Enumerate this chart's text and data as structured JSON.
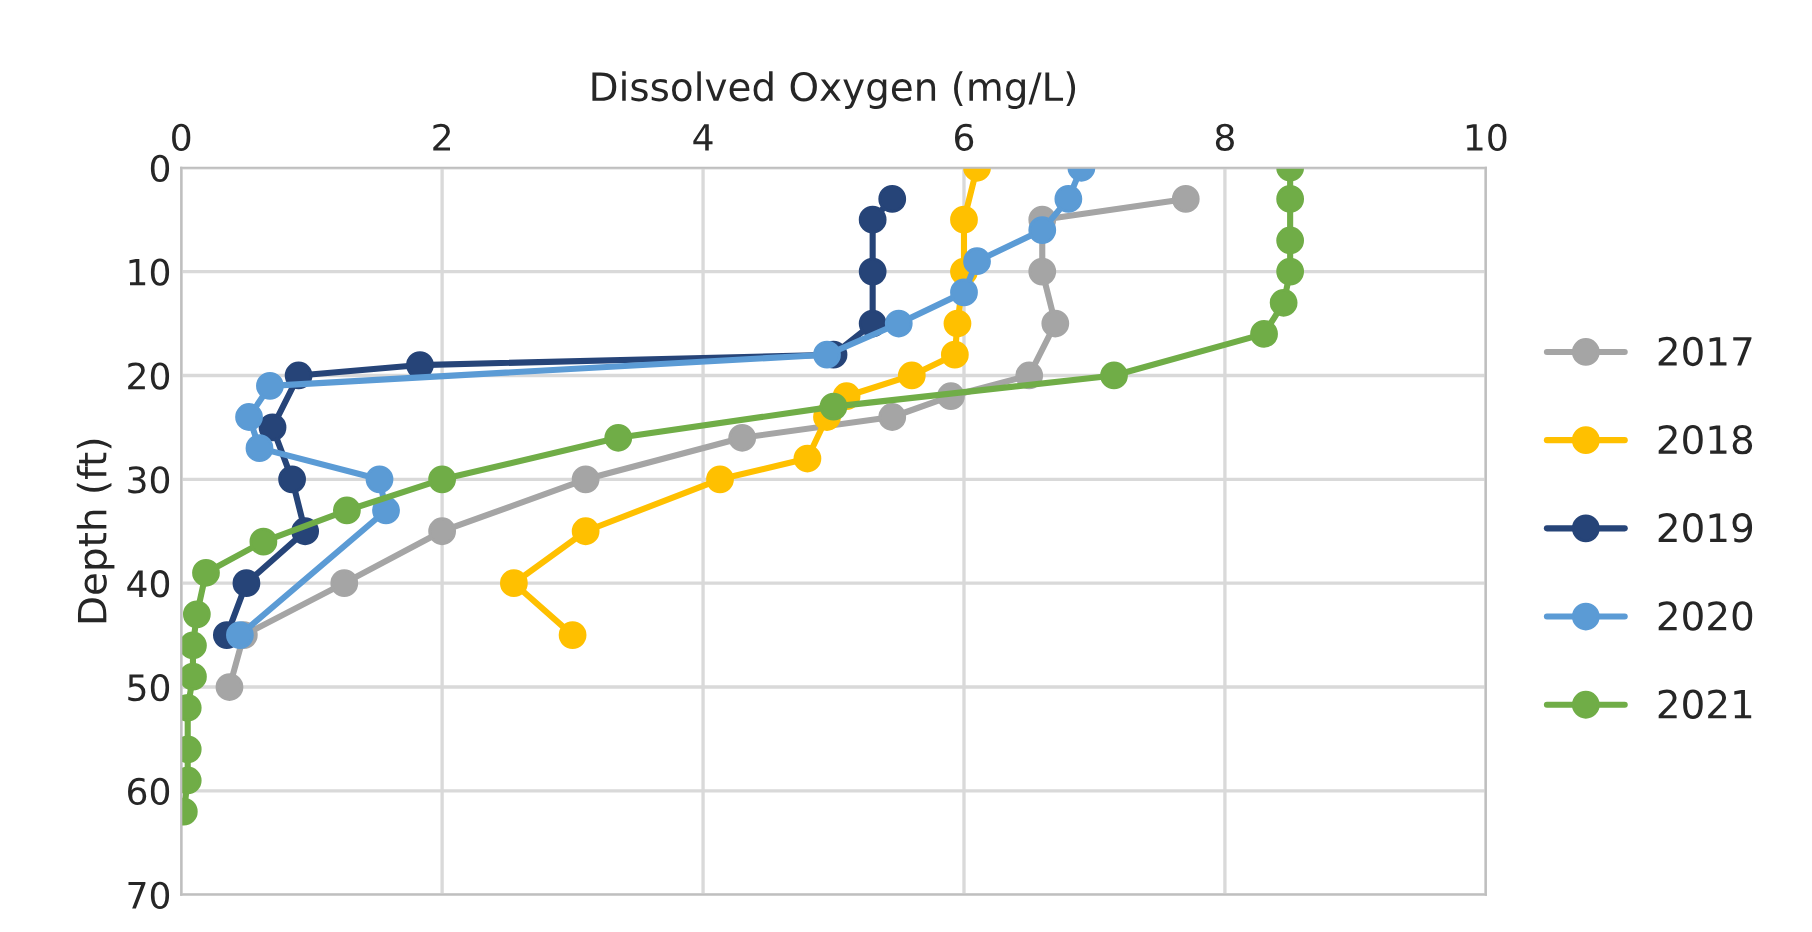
{
  "chart_data": {
    "type": "line",
    "xlabel": "Dissolved Oxygen (mg/L)",
    "ylabel": "Depth (ft)",
    "xlim": [
      0,
      10
    ],
    "xticks": [
      0,
      2,
      4,
      6,
      8,
      10
    ],
    "ylim": [
      70,
      0
    ],
    "yticks": [
      0,
      10,
      20,
      30,
      40,
      50,
      60,
      70
    ],
    "grid": true,
    "legend": "right",
    "marker": "circle",
    "line_style": "solid",
    "series": [
      {
        "name": "2017",
        "color": "#a5a5a5",
        "x": [
          7.7,
          6.6,
          6.6,
          6.7,
          6.5,
          5.9,
          5.45,
          4.3,
          3.1,
          2.0,
          1.25,
          0.48,
          0.37
        ],
        "values": [
          3,
          5,
          10,
          15,
          20,
          22,
          24,
          26,
          30,
          35,
          40,
          45,
          50
        ]
      },
      {
        "name": "2018",
        "color": "#ffc000",
        "x": [
          6.1,
          6.0,
          6.0,
          5.95,
          5.93,
          5.6,
          5.1,
          4.95,
          4.8,
          4.13,
          3.1,
          2.55,
          3.0
        ],
        "values": [
          0,
          5,
          10,
          15,
          18,
          20,
          22,
          24,
          28,
          30,
          35,
          40,
          45
        ]
      },
      {
        "name": "2019",
        "color": "#264478",
        "x": [
          5.45,
          5.3,
          5.3,
          5.3,
          5.0,
          1.83,
          0.9,
          0.7,
          0.85,
          0.95,
          0.5,
          0.35
        ],
        "values": [
          3,
          5,
          10,
          15,
          18,
          19,
          20,
          25,
          30,
          35,
          40,
          45
        ]
      },
      {
        "name": "2020",
        "color": "#5b9bd5",
        "x": [
          6.9,
          6.8,
          6.6,
          6.1,
          6.0,
          5.5,
          4.95,
          0.68,
          0.52,
          0.6,
          1.52,
          1.57,
          0.45
        ],
        "values": [
          0,
          3,
          6,
          9,
          12,
          15,
          18,
          21,
          24,
          27,
          30,
          33,
          45
        ]
      },
      {
        "name": "2021",
        "color": "#70ad47",
        "x": [
          8.5,
          8.5,
          8.5,
          8.5,
          8.45,
          8.3,
          7.15,
          5.0,
          3.35,
          2.0,
          1.27,
          0.63,
          0.19,
          0.12,
          0.09,
          0.09,
          0.05,
          0.05,
          0.05,
          0.02
        ],
        "values": [
          0,
          3,
          7,
          10,
          13,
          16,
          20,
          23,
          26,
          30,
          33,
          36,
          39,
          43,
          46,
          49,
          52,
          56,
          59,
          62
        ]
      }
    ]
  }
}
